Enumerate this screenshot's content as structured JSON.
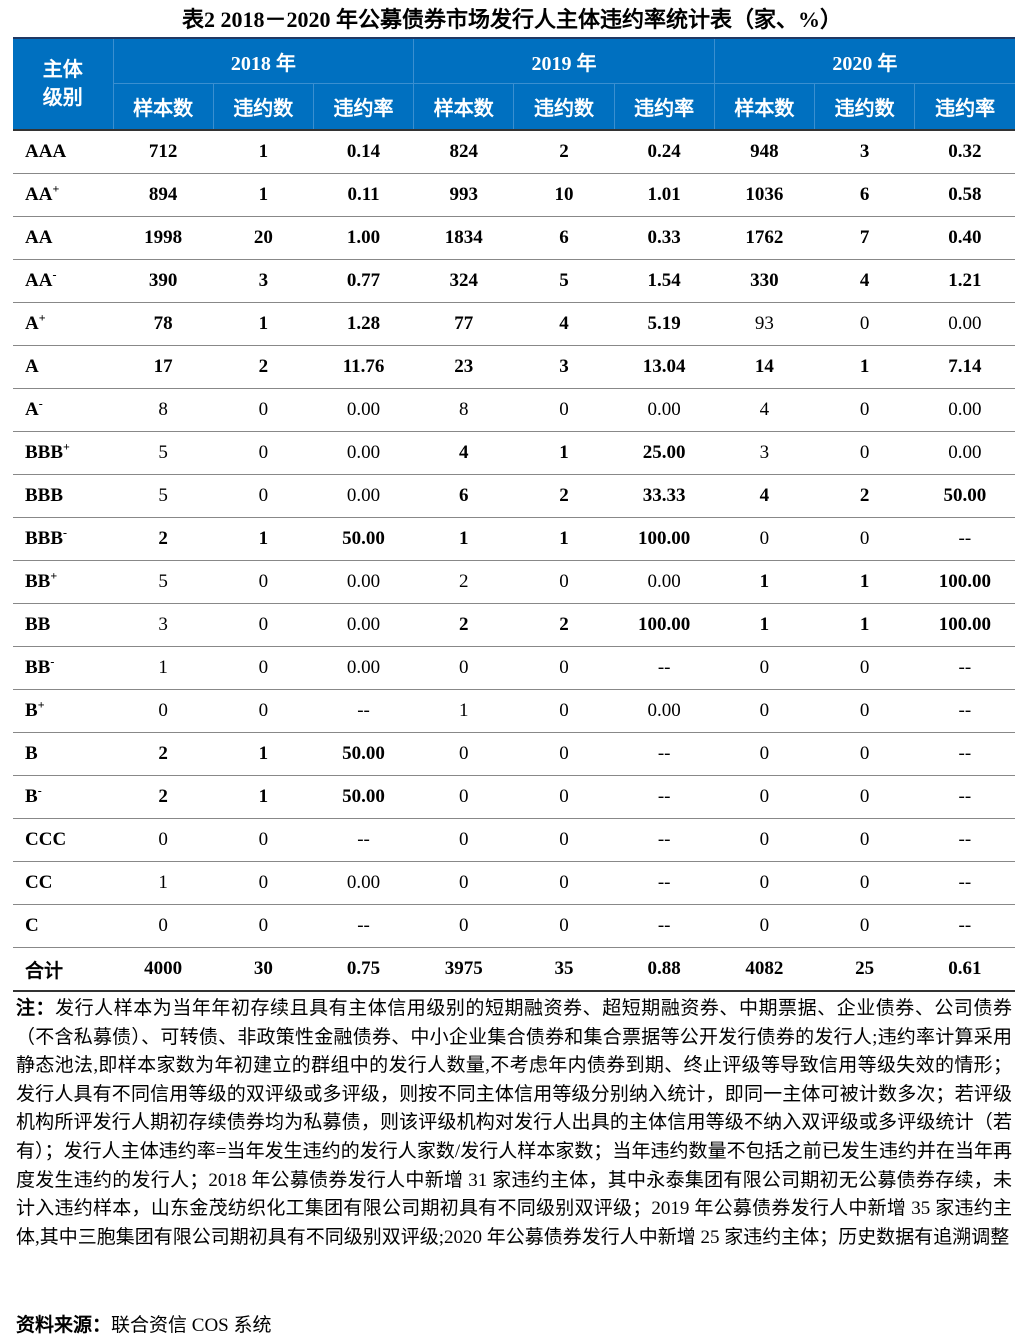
{
  "title": "表2 2018－2020 年公募债券市场发行人主体违约率统计表（家、%）",
  "header": {
    "grade_label": "主体级别",
    "years": [
      "2018 年",
      "2019 年",
      "2020 年"
    ],
    "sub": [
      "样本数",
      "违约数",
      "违约率"
    ]
  },
  "rows": [
    {
      "grade": "AAA",
      "sup": "",
      "v": [
        "712",
        "1",
        "0.14",
        "824",
        "2",
        "0.24",
        "948",
        "3",
        "0.32"
      ]
    },
    {
      "grade": "AA",
      "sup": "+",
      "v": [
        "894",
        "1",
        "0.11",
        "993",
        "10",
        "1.01",
        "1036",
        "6",
        "0.58"
      ]
    },
    {
      "grade": "AA",
      "sup": "",
      "v": [
        "1998",
        "20",
        "1.00",
        "1834",
        "6",
        "0.33",
        "1762",
        "7",
        "0.40"
      ]
    },
    {
      "grade": "AA",
      "sup": "-",
      "v": [
        "390",
        "3",
        "0.77",
        "324",
        "5",
        "1.54",
        "330",
        "4",
        "1.21"
      ]
    },
    {
      "grade": "A",
      "sup": "+",
      "v": [
        "78",
        "1",
        "1.28",
        "77",
        "4",
        "5.19",
        "93",
        "0",
        "0.00"
      ]
    },
    {
      "grade": "A",
      "sup": "",
      "v": [
        "17",
        "2",
        "11.76",
        "23",
        "3",
        "13.04",
        "14",
        "1",
        "7.14"
      ]
    },
    {
      "grade": "A",
      "sup": "-",
      "v": [
        "8",
        "0",
        "0.00",
        "8",
        "0",
        "0.00",
        "4",
        "0",
        "0.00"
      ]
    },
    {
      "grade": "BBB",
      "sup": "+",
      "v": [
        "5",
        "0",
        "0.00",
        "4",
        "1",
        "25.00",
        "3",
        "0",
        "0.00"
      ]
    },
    {
      "grade": "BBB",
      "sup": "",
      "v": [
        "5",
        "0",
        "0.00",
        "6",
        "2",
        "33.33",
        "4",
        "2",
        "50.00"
      ]
    },
    {
      "grade": "BBB",
      "sup": "-",
      "v": [
        "2",
        "1",
        "50.00",
        "1",
        "1",
        "100.00",
        "0",
        "0",
        "--"
      ]
    },
    {
      "grade": "BB",
      "sup": "+",
      "v": [
        "5",
        "0",
        "0.00",
        "2",
        "0",
        "0.00",
        "1",
        "1",
        "100.00"
      ]
    },
    {
      "grade": "BB",
      "sup": "",
      "v": [
        "3",
        "0",
        "0.00",
        "2",
        "2",
        "100.00",
        "1",
        "1",
        "100.00"
      ]
    },
    {
      "grade": "BB",
      "sup": "-",
      "v": [
        "1",
        "0",
        "0.00",
        "0",
        "0",
        "--",
        "0",
        "0",
        "--"
      ]
    },
    {
      "grade": "B",
      "sup": "+",
      "v": [
        "0",
        "0",
        "--",
        "1",
        "0",
        "0.00",
        "0",
        "0",
        "--"
      ]
    },
    {
      "grade": "B",
      "sup": "",
      "v": [
        "2",
        "1",
        "50.00",
        "0",
        "0",
        "--",
        "0",
        "0",
        "--"
      ]
    },
    {
      "grade": "B",
      "sup": "-",
      "v": [
        "2",
        "1",
        "50.00",
        "0",
        "0",
        "--",
        "0",
        "0",
        "--"
      ]
    },
    {
      "grade": "CCC",
      "sup": "",
      "v": [
        "0",
        "0",
        "--",
        "0",
        "0",
        "--",
        "0",
        "0",
        "--"
      ]
    },
    {
      "grade": "CC",
      "sup": "",
      "v": [
        "1",
        "0",
        "0.00",
        "0",
        "0",
        "--",
        "0",
        "0",
        "--"
      ]
    },
    {
      "grade": "C",
      "sup": "",
      "v": [
        "0",
        "0",
        "--",
        "0",
        "0",
        "--",
        "0",
        "0",
        "--"
      ]
    }
  ],
  "total": {
    "grade": "合计",
    "v": [
      "4000",
      "30",
      "0.75",
      "3975",
      "35",
      "0.88",
      "4082",
      "25",
      "0.61"
    ]
  },
  "note": {
    "label": "注：",
    "text": "发行人样本为当年年初存续且具有主体信用级别的短期融资券、超短期融资券、中期票据、企业债券、公司债券（不含私募债）、可转债、非政策性金融债券、中小企业集合债券和集合票据等公开发行债券的发行人;违约率计算采用静态池法,即样本家数为年初建立的群组中的发行人数量,不考虑年内债券到期、终止评级等导致信用等级失效的情形；发行人具有不同信用等级的双评级或多评级，则按不同主体信用等级分别纳入统计，即同一主体可被计数多次；若评级机构所评发行人期初存续债券均为私募债，则该评级机构对发行人出具的主体信用等级不纳入双评级或多评级统计（若有）；发行人主体违约率=当年发生违约的发行人家数/发行人样本家数；当年违约数量不包括之前已发生违约并在当年再度发生违约的发行人；2018 年公募债券发行人中新增 31 家违约主体，其中永泰集团有限公司期初无公募债券存续，未计入违约样本，山东金茂纺织化工集团有限公司期初具有不同级别双评级；2019 年公募债券发行人中新增 35 家违约主体,其中三胞集团有限公司期初具有不同级别双评级;2020 年公募债券发行人中新增 25 家违约主体；历史数据有追溯调整"
  },
  "source": {
    "label": "资料来源：",
    "text": "联合资信 COS 系统"
  }
}
